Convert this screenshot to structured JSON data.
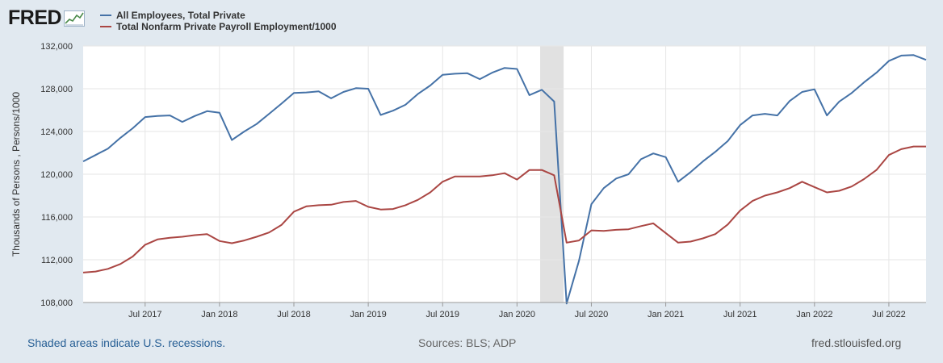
{
  "logo": {
    "text": "FRED",
    "icon": "graph-trend-icon"
  },
  "legend": [
    {
      "label": "All Employees, Total Private",
      "color": "#4572a7"
    },
    {
      "label": "Total Nonfarm Private Payroll Employment/1000",
      "color": "#aa4643"
    }
  ],
  "footer": {
    "recession_note": "Shaded areas indicate U.S. recessions.",
    "sources": "Sources: BLS; ADP",
    "site": "fred.stlouisfed.org"
  },
  "chart_data": {
    "type": "line",
    "title": "",
    "xlabel": "",
    "ylabel": "Thousands of Persons , Persons/1000",
    "ylim": [
      108000,
      132000
    ],
    "y_ticks": [
      "108,000",
      "112,000",
      "116,000",
      "120,000",
      "124,000",
      "128,000",
      "132,000"
    ],
    "x_ticks": [
      "Jul 2017",
      "Jan 2018",
      "Jul 2018",
      "Jan 2019",
      "Jul 2019",
      "Jan 2020",
      "Jul 2020",
      "Jan 2021",
      "Jul 2021",
      "Jan 2022",
      "Jul 2022"
    ],
    "x_start": "Feb 2017",
    "x_end": "Oct 2022",
    "recession": {
      "start_index": 37,
      "end_index": 39
    },
    "grid": true,
    "series": [
      {
        "name": "All Employees, Total Private",
        "color": "#4572a7",
        "values": [
          121200,
          121800,
          122400,
          123400,
          124300,
          125350,
          125450,
          125500,
          124900,
          125450,
          125900,
          125750,
          123200,
          124000,
          124700,
          125650,
          126600,
          127600,
          127650,
          127750,
          127100,
          127700,
          128050,
          128000,
          125550,
          125950,
          126500,
          127500,
          128300,
          129300,
          129400,
          129450,
          128900,
          129500,
          129950,
          129850,
          127400,
          127900,
          126800,
          107900,
          111900,
          117200,
          118700,
          119600,
          120000,
          121400,
          121950,
          121600,
          119300,
          120200,
          121200,
          122100,
          123100,
          124600,
          125500,
          125650,
          125500,
          126850,
          127700,
          127950,
          125500,
          126800,
          127600,
          128600,
          129500,
          130600,
          131100,
          131150,
          130700
        ]
      },
      {
        "name": "Total Nonfarm Private Payroll Employment/1000",
        "color": "#aa4643",
        "values": [
          110800,
          110900,
          111150,
          111600,
          112300,
          113400,
          113900,
          114050,
          114150,
          114300,
          114400,
          113750,
          113550,
          113800,
          114150,
          114550,
          115250,
          116500,
          117000,
          117100,
          117150,
          117400,
          117500,
          116950,
          116700,
          116750,
          117100,
          117600,
          118300,
          119300,
          119800,
          119800,
          119800,
          119900,
          120100,
          119500,
          120400,
          120400,
          119900,
          113600,
          113800,
          114750,
          114700,
          114800,
          114850,
          115150,
          115400,
          114500,
          113600,
          113700,
          114000,
          114400,
          115300,
          116600,
          117500,
          118000,
          118300,
          118700,
          119300,
          118800,
          118300,
          118450,
          118850,
          119550,
          120400,
          121800,
          122350,
          122600,
          122600
        ]
      }
    ]
  }
}
